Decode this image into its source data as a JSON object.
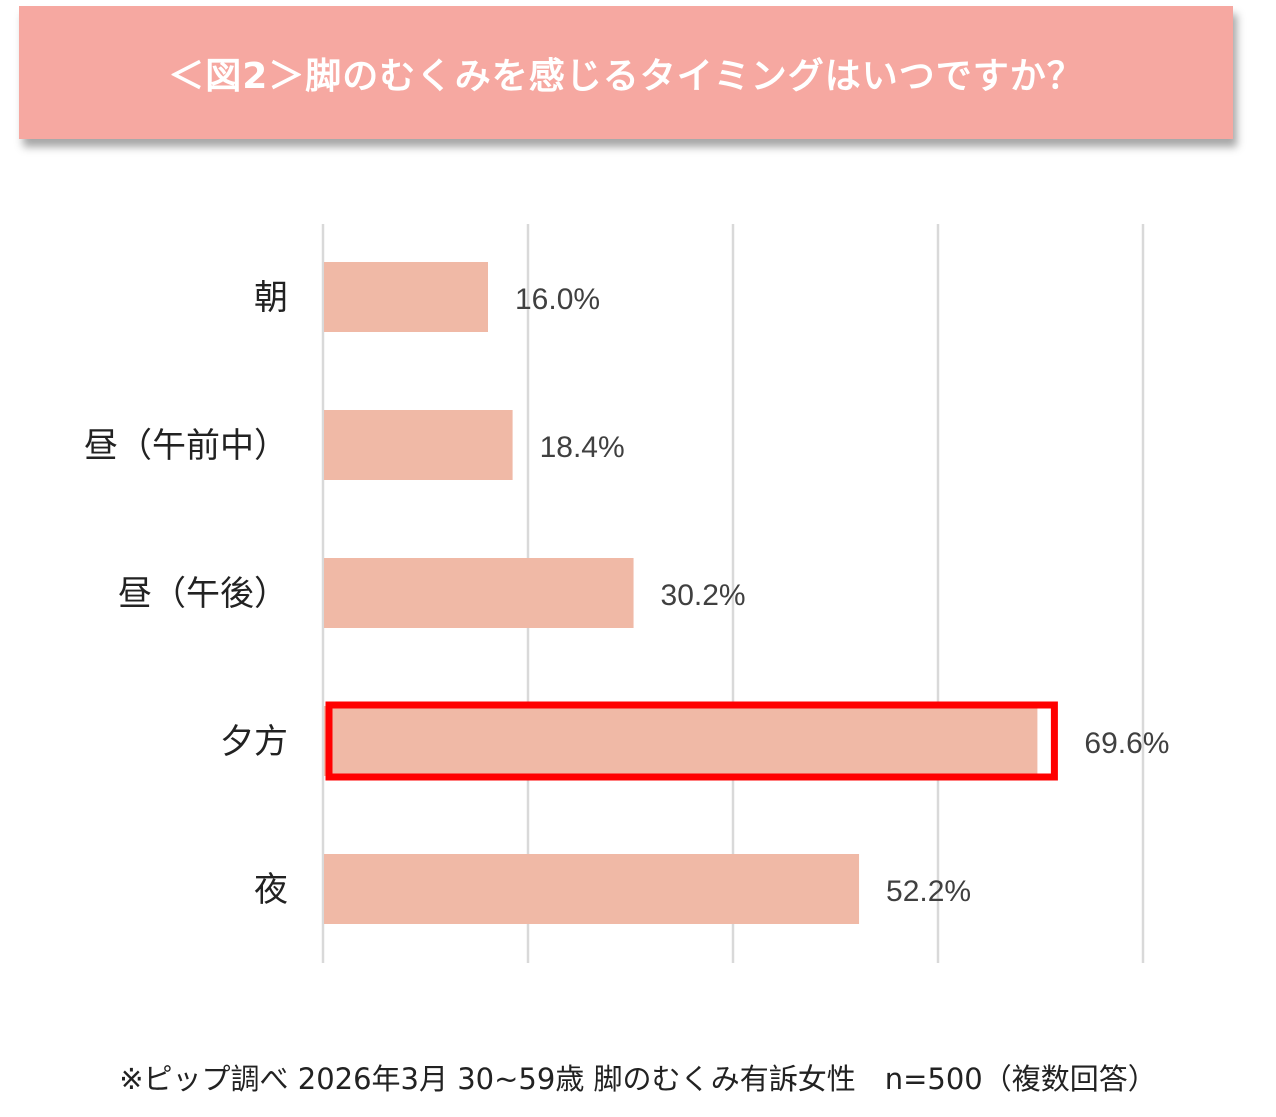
{
  "chart_data": {
    "type": "bar",
    "orientation": "horizontal",
    "title": "＜図2＞脚のむくみを感じるタイミングはいつですか？",
    "categories": [
      "朝",
      "昼（午前中）",
      "昼（午後）",
      "夕方",
      "夜"
    ],
    "values": [
      16.0,
      18.4,
      30.2,
      69.6,
      52.2
    ],
    "data_labels": [
      "16.0%",
      "18.4%",
      "30.2%",
      "69.6%",
      "52.2%"
    ],
    "xlim": [
      0,
      80
    ],
    "grid": true,
    "highlighted_category": "夕方",
    "colors": {
      "bar": "#f0b9a6",
      "highlight_border": "#ff0000",
      "gridline": "#d9d9d9",
      "banner": "#f6a8a1"
    }
  },
  "footer": "※ピップ調べ 2026年3月 30~59歳 脚のむくみ有訴女性　n=500（複数回答）"
}
